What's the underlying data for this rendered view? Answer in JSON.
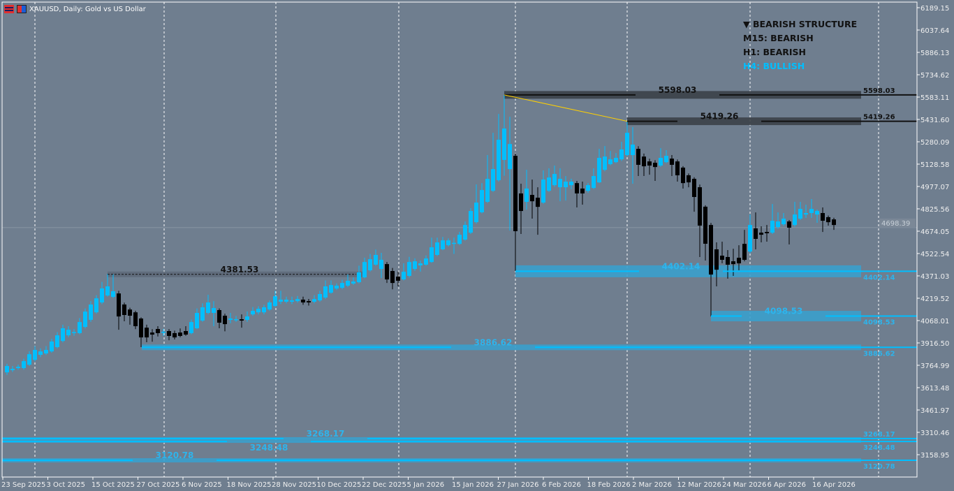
{
  "header": {
    "title": "XAUUSD, Daily:  Gold vs US Dollar",
    "icons": [
      "chart-grid-icon",
      "symbol-icon"
    ]
  },
  "structure_panel": {
    "lines": [
      {
        "text": "▼ BEARISH STRUCTURE",
        "color": "#111111"
      },
      {
        "text": "M15: BEARISH",
        "color": "#111111"
      },
      {
        "text": "H1: BEARISH",
        "color": "#111111"
      },
      {
        "text": "H4: BULLISH",
        "color": "#00bfff"
      }
    ]
  },
  "colors": {
    "background": "#6f7e8f",
    "bull": "#00bfff",
    "bear": "#000000",
    "grid": "#ffffff",
    "trendline": "#ffd000",
    "demand_zone": "#3aa0cc",
    "supply_zone": "#3b4148",
    "axis_text": "#f0f0f0"
  },
  "levels": [
    {
      "price": 4381.53,
      "label": "4381.53",
      "type": "swing-high",
      "color": "#111111"
    },
    {
      "price": 5598.03,
      "label": "5598.03",
      "right_label": "5598.03",
      "type": "supply",
      "color": "#111111"
    },
    {
      "price": 5419.26,
      "label": "5419.26",
      "right_label": "5419.26",
      "type": "supply",
      "color": "#111111"
    },
    {
      "price": 4402.14,
      "label": "4402.14",
      "right_label": "4402.14",
      "type": "demand",
      "color": "#00bfff"
    },
    {
      "price": 4098.53,
      "label": "4098.53",
      "right_label": "4098.53",
      "type": "demand",
      "color": "#00bfff"
    },
    {
      "price": 3886.62,
      "label": "3886.62",
      "right_label": "3886.62",
      "type": "demand",
      "color": "#00bfff"
    },
    {
      "price": 3268.17,
      "label": "3268.17",
      "right_label": "3268.17",
      "type": "demand",
      "color": "#00bfff"
    },
    {
      "price": 3248.48,
      "label": "3248.48",
      "right_label": "3248.48",
      "type": "demand",
      "color": "#00bfff"
    },
    {
      "price": 3120.78,
      "label": "3120.78",
      "right_label": "3120.78",
      "type": "demand",
      "color": "#00bfff"
    }
  ],
  "chart_data": {
    "type": "candlestick",
    "symbol": "XAUUSD",
    "timeframe": "Daily",
    "ylim": [
      3060,
      6220
    ],
    "current_price": 4698.39,
    "current_price_label": "4698.39",
    "y_ticks": [
      "6189.15",
      "6037.64",
      "5886.13",
      "5734.62",
      "5583.11",
      "5431.60",
      "5280.09",
      "5128.58",
      "4977.07",
      "4825.56",
      "4674.05",
      "4522.54",
      "4371.03",
      "4219.52",
      "4068.01",
      "3916.50",
      "3764.99",
      "3613.48",
      "3461.97",
      "3310.46",
      "3158.95"
    ],
    "x_ticks": [
      "23 Sep 2025",
      "3 Oct 2025",
      "15 Oct 2025",
      "27 Oct 2025",
      "6 Nov 2025",
      "18 Nov 2025",
      "28 Nov 2025",
      "10 Dec 2025",
      "22 Dec 2025",
      "5 Jan 2026",
      "15 Jan 2026",
      "27 Jan 2026",
      "6 Feb 2026",
      "18 Feb 2026",
      "2 Mar 2026",
      "12 Mar 2026",
      "24 Mar 2026",
      "6 Apr 2026",
      "16 Apr 2026"
    ],
    "candle_format": [
      "open",
      "high",
      "low",
      "close"
    ],
    "candles": [
      [
        3717,
        3775,
        3700,
        3760
      ],
      [
        3732,
        3760,
        3720,
        3741
      ],
      [
        3746,
        3770,
        3735,
        3755
      ],
      [
        3746,
        3810,
        3735,
        3793
      ],
      [
        3769,
        3860,
        3760,
        3840
      ],
      [
        3802,
        3895,
        3790,
        3869
      ],
      [
        3836,
        3880,
        3820,
        3859
      ],
      [
        3845,
        3895,
        3835,
        3869
      ],
      [
        3859,
        3945,
        3850,
        3926
      ],
      [
        3888,
        3990,
        3880,
        3968
      ],
      [
        3930,
        4040,
        3920,
        4016
      ],
      [
        3968,
        4030,
        3955,
        4006
      ],
      [
        3985,
        4010,
        3965,
        3990
      ],
      [
        3983,
        4085,
        3975,
        4058
      ],
      [
        4025,
        4150,
        4015,
        4129
      ],
      [
        4073,
        4200,
        4060,
        4177
      ],
      [
        4124,
        4240,
        4115,
        4219
      ],
      [
        4191,
        4330,
        4180,
        4286
      ],
      [
        4238,
        4385,
        4230,
        4300
      ],
      [
        4229,
        4382,
        4220,
        4267
      ],
      [
        4252,
        4270,
        4006,
        4096
      ],
      [
        4177,
        4190,
        4063,
        4106
      ],
      [
        4143,
        4155,
        4040,
        4101
      ],
      [
        4124,
        4135,
        4010,
        4030
      ],
      [
        4082,
        4090,
        3888,
        3954
      ],
      [
        4020,
        4040,
        3921,
        3954
      ],
      [
        3987,
        4010,
        3925,
        3973
      ],
      [
        4011,
        4030,
        3960,
        3983
      ],
      [
        3992,
        4012,
        3965,
        3992
      ],
      [
        3997,
        4010,
        3935,
        3964
      ],
      [
        3983,
        4000,
        3940,
        3954
      ],
      [
        3987,
        4015,
        3955,
        3964
      ],
      [
        3997,
        4030,
        3965,
        3973
      ],
      [
        3983,
        4075,
        3975,
        4058
      ],
      [
        4016,
        4150,
        4010,
        4120
      ],
      [
        4068,
        4185,
        4060,
        4158
      ],
      [
        4120,
        4243,
        4110,
        4191
      ],
      [
        4120,
        4200,
        4030,
        4153
      ],
      [
        4139,
        4150,
        4016,
        4054
      ],
      [
        4101,
        4115,
        3995,
        4044
      ],
      [
        4073,
        4120,
        4050,
        4082
      ],
      [
        4075,
        4100,
        4060,
        4077
      ],
      [
        4077,
        4110,
        4020,
        4068
      ],
      [
        4073,
        4130,
        4060,
        4096
      ],
      [
        4110,
        4160,
        4100,
        4134
      ],
      [
        4124,
        4165,
        4110,
        4148
      ],
      [
        4124,
        4175,
        4110,
        4158
      ],
      [
        4143,
        4205,
        4135,
        4191
      ],
      [
        4167,
        4270,
        4160,
        4233
      ],
      [
        4196,
        4270,
        4180,
        4210
      ],
      [
        4196,
        4230,
        4185,
        4210
      ],
      [
        4196,
        4230,
        4180,
        4205
      ],
      [
        4200,
        4235,
        4190,
        4214
      ],
      [
        4210,
        4230,
        4175,
        4191
      ],
      [
        4200,
        4215,
        4170,
        4191
      ],
      [
        4196,
        4240,
        4185,
        4214
      ],
      [
        4205,
        4270,
        4195,
        4248
      ],
      [
        4224,
        4340,
        4215,
        4300
      ],
      [
        4257,
        4340,
        4250,
        4309
      ],
      [
        4285,
        4320,
        4275,
        4305
      ],
      [
        4290,
        4345,
        4280,
        4323
      ],
      [
        4305,
        4380,
        4295,
        4338
      ],
      [
        4319,
        4360,
        4310,
        4333
      ],
      [
        4328,
        4440,
        4320,
        4395
      ],
      [
        4361,
        4495,
        4355,
        4465
      ],
      [
        4409,
        4520,
        4400,
        4484
      ],
      [
        4447,
        4550,
        4440,
        4513
      ],
      [
        4418,
        4527,
        4357,
        4480
      ],
      [
        4451,
        4465,
        4323,
        4347
      ],
      [
        4404,
        4425,
        4280,
        4323
      ],
      [
        4366,
        4400,
        4300,
        4338
      ],
      [
        4347,
        4456,
        4340,
        4399
      ],
      [
        4371,
        4500,
        4360,
        4465
      ],
      [
        4418,
        4490,
        4405,
        4470
      ],
      [
        4442,
        4475,
        4400,
        4456
      ],
      [
        4447,
        4510,
        4440,
        4489
      ],
      [
        4465,
        4630,
        4460,
        4565
      ],
      [
        4513,
        4630,
        4505,
        4598
      ],
      [
        4551,
        4635,
        4545,
        4612
      ],
      [
        4579,
        4625,
        4570,
        4612
      ],
      [
        4590,
        4630,
        4520,
        4595
      ],
      [
        4588,
        4670,
        4580,
        4650
      ],
      [
        4617,
        4740,
        4610,
        4716
      ],
      [
        4664,
        4830,
        4655,
        4811
      ],
      [
        4735,
        4991,
        4725,
        4868
      ],
      [
        4802,
        5000,
        4795,
        4953
      ],
      [
        4873,
        5190,
        4865,
        5029
      ],
      [
        4948,
        5341,
        4940,
        5095
      ],
      [
        5020,
        5469,
        5010,
        5294
      ],
      [
        5157,
        5598,
        5050,
        5370
      ],
      [
        5095,
        5450,
        4679,
        5265
      ],
      [
        5185,
        5200,
        4404,
        4674
      ],
      [
        4930,
        4996,
        4655,
        4811
      ],
      [
        4873,
        5090,
        4820,
        4963
      ],
      [
        4920,
        5024,
        4759,
        4877
      ],
      [
        4901,
        4972,
        4650,
        4839
      ],
      [
        4868,
        5086,
        4860,
        5024
      ],
      [
        4948,
        5100,
        4940,
        5038
      ],
      [
        4986,
        5119,
        4975,
        5062
      ],
      [
        4972,
        5100,
        4877,
        5029
      ],
      [
        4972,
        5048,
        4882,
        5010
      ],
      [
        4986,
        5030,
        4960,
        5010
      ],
      [
        5000,
        5015,
        4835,
        4930
      ],
      [
        4963,
        5010,
        4854,
        4930
      ],
      [
        4948,
        5000,
        4935,
        4986
      ],
      [
        4967,
        5100,
        4960,
        5048
      ],
      [
        5005,
        5232,
        5000,
        5171
      ],
      [
        5090,
        5251,
        5080,
        5180
      ],
      [
        5128,
        5218,
        5120,
        5161
      ],
      [
        5142,
        5204,
        5135,
        5171
      ],
      [
        5161,
        5280,
        5150,
        5228
      ],
      [
        5190,
        5419,
        5180,
        5341
      ],
      [
        5190,
        5380,
        4996,
        5261
      ],
      [
        5232,
        5250,
        5048,
        5124
      ],
      [
        5180,
        5200,
        5048,
        5114
      ],
      [
        5147,
        5165,
        5057,
        5119
      ],
      [
        5138,
        5155,
        5015,
        5109
      ],
      [
        5119,
        5237,
        5110,
        5171
      ],
      [
        5142,
        5223,
        5135,
        5185
      ],
      [
        5166,
        5190,
        5048,
        5124
      ],
      [
        5147,
        5160,
        5010,
        5053
      ],
      [
        5105,
        5115,
        4963,
        5000
      ],
      [
        5053,
        5065,
        4972,
        5005
      ],
      [
        5029,
        5040,
        4806,
        4906
      ],
      [
        4972,
        4990,
        4499,
        4712
      ],
      [
        4840,
        4850,
        4475,
        4589
      ],
      [
        4716,
        4730,
        4096,
        4380
      ],
      [
        4551,
        4598,
        4300,
        4413
      ],
      [
        4508,
        4603,
        4456,
        4480
      ],
      [
        4499,
        4546,
        4352,
        4447
      ],
      [
        4470,
        4555,
        4371,
        4451
      ],
      [
        4494,
        4579,
        4409,
        4456
      ],
      [
        4588,
        4683,
        4470,
        4480
      ],
      [
        4536,
        4787,
        4525,
        4716
      ],
      [
        4693,
        4801,
        4551,
        4622
      ],
      [
        4664,
        4707,
        4598,
        4650
      ],
      [
        4669,
        4716,
        4603,
        4660
      ],
      [
        4664,
        4858,
        4655,
        4745
      ],
      [
        4702,
        4801,
        4690,
        4740
      ],
      [
        4721,
        4797,
        4710,
        4759
      ],
      [
        4740,
        4750,
        4584,
        4698
      ],
      [
        4716,
        4873,
        4705,
        4787
      ],
      [
        4759,
        4873,
        4750,
        4825
      ],
      [
        4787,
        4854,
        4764,
        4797
      ],
      [
        4797,
        4892,
        4764,
        4825
      ],
      [
        4787,
        4821,
        4731,
        4811
      ],
      [
        4797,
        4835,
        4669,
        4745
      ],
      [
        4769,
        4780,
        4712,
        4735
      ],
      [
        4754,
        4765,
        4683,
        4716
      ]
    ]
  }
}
